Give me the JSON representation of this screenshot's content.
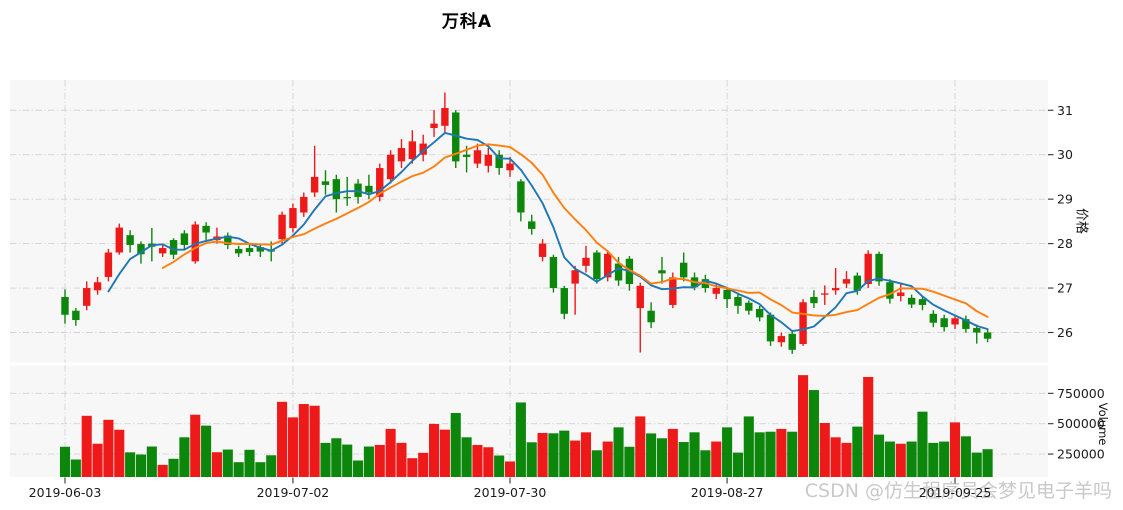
{
  "title": "万科A",
  "watermark": "CSDN @仿生程序员会梦见电子羊吗",
  "colors": {
    "up": "#ee1a1a",
    "down": "#0c870c",
    "ma5": "#1f77b4",
    "ma10": "#ff7f0e",
    "panel_bg": "#f7f7f7",
    "grid": "#d3d3d3",
    "tick_text": "#1a1a1a",
    "watermark": "#c9c9c9"
  },
  "axes": {
    "price": {
      "label": "价格",
      "ticks": [
        26,
        27,
        28,
        29,
        30,
        31
      ],
      "range": [
        25.3,
        31.7
      ]
    },
    "volume": {
      "label": "Volume",
      "ticks": [
        250000,
        500000,
        750000
      ],
      "tick_labels": [
        "250000",
        "500000",
        "750000"
      ],
      "range": [
        0,
        966000
      ]
    },
    "x": {
      "tick_labels": [
        "2019-06-03",
        "2019-07-02",
        "2019-07-30",
        "2019-08-27",
        "2019-09-25"
      ],
      "tick_indices": [
        0,
        21,
        41,
        61,
        82
      ]
    }
  },
  "chart_data": {
    "type": "candlestick+volume",
    "title": "万科A",
    "ylabel_price": "价格",
    "ylabel_volume": "Volume",
    "x_tick_labels": [
      "2019-06-03",
      "2019-07-02",
      "2019-07-30",
      "2019-08-27",
      "2019-09-25"
    ],
    "x_tick_indices": [
      0,
      21,
      41,
      61,
      82
    ],
    "price_range": [
      25.3,
      31.7
    ],
    "volume_range": [
      0,
      966000
    ],
    "up_color_rule": "red when close >= open (China convention)",
    "ma_overlays": [
      {
        "name": "MA5",
        "window": 5,
        "color_key": "ma5"
      },
      {
        "name": "MA10",
        "window": 10,
        "color_key": "ma10"
      }
    ],
    "columns": [
      "open",
      "close",
      "low",
      "high",
      "volume"
    ],
    "candles": [
      [
        26.8,
        26.4,
        26.2,
        26.97,
        310000
      ],
      [
        26.49,
        26.28,
        26.15,
        26.55,
        205000
      ],
      [
        26.6,
        27.0,
        26.5,
        27.15,
        565000
      ],
      [
        26.95,
        27.13,
        26.85,
        27.25,
        335000
      ],
      [
        27.25,
        27.8,
        27.15,
        27.88,
        532000
      ],
      [
        27.8,
        28.36,
        27.75,
        28.45,
        450000
      ],
      [
        28.19,
        27.97,
        27.8,
        28.3,
        264000
      ],
      [
        27.99,
        27.76,
        27.55,
        28.05,
        246000
      ],
      [
        28.0,
        27.93,
        27.6,
        28.35,
        312000
      ],
      [
        27.78,
        27.9,
        27.7,
        28.0,
        161000
      ],
      [
        28.08,
        27.75,
        27.65,
        28.12,
        211000
      ],
      [
        28.23,
        27.97,
        27.85,
        28.3,
        388000
      ],
      [
        27.6,
        28.43,
        27.55,
        28.5,
        574000
      ],
      [
        28.4,
        28.25,
        28.04,
        28.48,
        484000
      ],
      [
        28.08,
        28.16,
        28.0,
        28.36,
        265000
      ],
      [
        28.18,
        27.97,
        27.88,
        28.25,
        287000
      ],
      [
        27.88,
        27.78,
        27.7,
        27.95,
        183000
      ],
      [
        27.9,
        27.81,
        27.72,
        27.98,
        285000
      ],
      [
        27.92,
        27.82,
        27.7,
        28.0,
        183000
      ],
      [
        27.85,
        27.82,
        27.6,
        28.05,
        240000
      ],
      [
        28.1,
        28.65,
        28.0,
        28.72,
        680000
      ],
      [
        28.35,
        28.8,
        28.25,
        28.9,
        552000
      ],
      [
        28.7,
        29.05,
        28.6,
        29.15,
        662000
      ],
      [
        29.15,
        29.5,
        29.05,
        30.2,
        648000
      ],
      [
        29.4,
        29.32,
        29.1,
        29.65,
        342000
      ],
      [
        29.45,
        29.0,
        28.7,
        29.55,
        380000
      ],
      [
        29.05,
        29.02,
        28.85,
        29.5,
        328000
      ],
      [
        29.35,
        29.05,
        28.9,
        29.45,
        197000
      ],
      [
        29.3,
        29.15,
        29.0,
        29.55,
        312000
      ],
      [
        29.05,
        29.7,
        28.95,
        29.8,
        325000
      ],
      [
        29.45,
        30.0,
        29.35,
        30.1,
        457000
      ],
      [
        29.85,
        30.15,
        29.7,
        30.35,
        342000
      ],
      [
        29.9,
        30.3,
        29.8,
        30.55,
        216000
      ],
      [
        30.0,
        30.25,
        29.85,
        30.45,
        260000
      ],
      [
        30.6,
        30.7,
        30.4,
        31.0,
        498000
      ],
      [
        30.65,
        31.05,
        30.5,
        31.4,
        451000
      ],
      [
        30.95,
        29.85,
        29.7,
        31.0,
        588000
      ],
      [
        30.0,
        29.95,
        29.6,
        30.2,
        388000
      ],
      [
        29.8,
        30.1,
        29.7,
        30.25,
        325000
      ],
      [
        29.75,
        30.0,
        29.6,
        30.15,
        306000
      ],
      [
        30.0,
        29.7,
        29.55,
        30.1,
        238000
      ],
      [
        29.65,
        29.8,
        29.5,
        29.95,
        189000
      ],
      [
        29.4,
        28.7,
        28.5,
        29.45,
        675000
      ],
      [
        28.5,
        28.33,
        28.2,
        28.65,
        347000
      ],
      [
        27.7,
        28.0,
        27.6,
        28.1,
        424000
      ],
      [
        27.7,
        27.0,
        26.9,
        27.75,
        421000
      ],
      [
        27.0,
        26.42,
        26.3,
        27.05,
        443000
      ],
      [
        27.1,
        27.4,
        26.4,
        27.5,
        361000
      ],
      [
        27.5,
        27.68,
        27.35,
        27.95,
        429000
      ],
      [
        27.8,
        27.2,
        27.1,
        27.85,
        281000
      ],
      [
        27.24,
        27.77,
        27.15,
        27.85,
        353000
      ],
      [
        27.55,
        27.17,
        27.05,
        27.7,
        470000
      ],
      [
        27.66,
        27.09,
        26.94,
        27.72,
        310000
      ],
      [
        26.55,
        27.05,
        25.55,
        27.12,
        560000
      ],
      [
        26.49,
        26.23,
        26.1,
        26.68,
        420000
      ],
      [
        27.4,
        27.33,
        27.1,
        27.7,
        380000
      ],
      [
        26.62,
        27.24,
        26.55,
        27.35,
        457000
      ],
      [
        27.57,
        27.24,
        27.15,
        27.8,
        349000
      ],
      [
        27.24,
        27.02,
        26.95,
        27.35,
        429000
      ],
      [
        27.2,
        27.0,
        26.9,
        27.3,
        281000
      ],
      [
        26.87,
        27.0,
        26.75,
        27.08,
        353000
      ],
      [
        26.96,
        26.75,
        26.55,
        27.02,
        470000
      ],
      [
        26.8,
        26.6,
        26.42,
        26.9,
        262000
      ],
      [
        26.67,
        26.49,
        26.4,
        26.72,
        560000
      ],
      [
        26.53,
        26.34,
        26.25,
        26.6,
        429000
      ],
      [
        26.4,
        25.8,
        25.7,
        26.45,
        434000
      ],
      [
        25.78,
        25.92,
        25.68,
        26.0,
        457000
      ],
      [
        25.97,
        25.61,
        25.52,
        26.02,
        434000
      ],
      [
        25.74,
        26.68,
        25.7,
        26.75,
        900000
      ],
      [
        26.8,
        26.66,
        26.55,
        26.95,
        777000
      ],
      [
        26.85,
        26.88,
        26.62,
        27.06,
        506000
      ],
      [
        26.95,
        27.0,
        26.85,
        27.45,
        388000
      ],
      [
        27.1,
        27.2,
        27.0,
        27.38,
        342000
      ],
      [
        27.28,
        26.94,
        26.85,
        27.35,
        476000
      ],
      [
        27.09,
        27.77,
        27.0,
        27.85,
        885000
      ],
      [
        27.77,
        27.15,
        27.05,
        27.82,
        410000
      ],
      [
        27.13,
        26.76,
        26.65,
        27.2,
        353000
      ],
      [
        26.82,
        26.9,
        26.7,
        27.1,
        335000
      ],
      [
        26.78,
        26.63,
        26.55,
        26.85,
        353000
      ],
      [
        26.75,
        26.62,
        26.5,
        26.8,
        599000
      ],
      [
        26.42,
        26.22,
        26.12,
        26.5,
        342000
      ],
      [
        26.32,
        26.12,
        26.02,
        26.4,
        353000
      ],
      [
        26.18,
        26.32,
        26.08,
        26.4,
        511000
      ],
      [
        26.3,
        26.08,
        26.0,
        26.38,
        396000
      ],
      [
        26.1,
        26.0,
        25.75,
        26.18,
        262000
      ],
      [
        26.0,
        25.86,
        25.78,
        26.08,
        290000
      ]
    ]
  }
}
